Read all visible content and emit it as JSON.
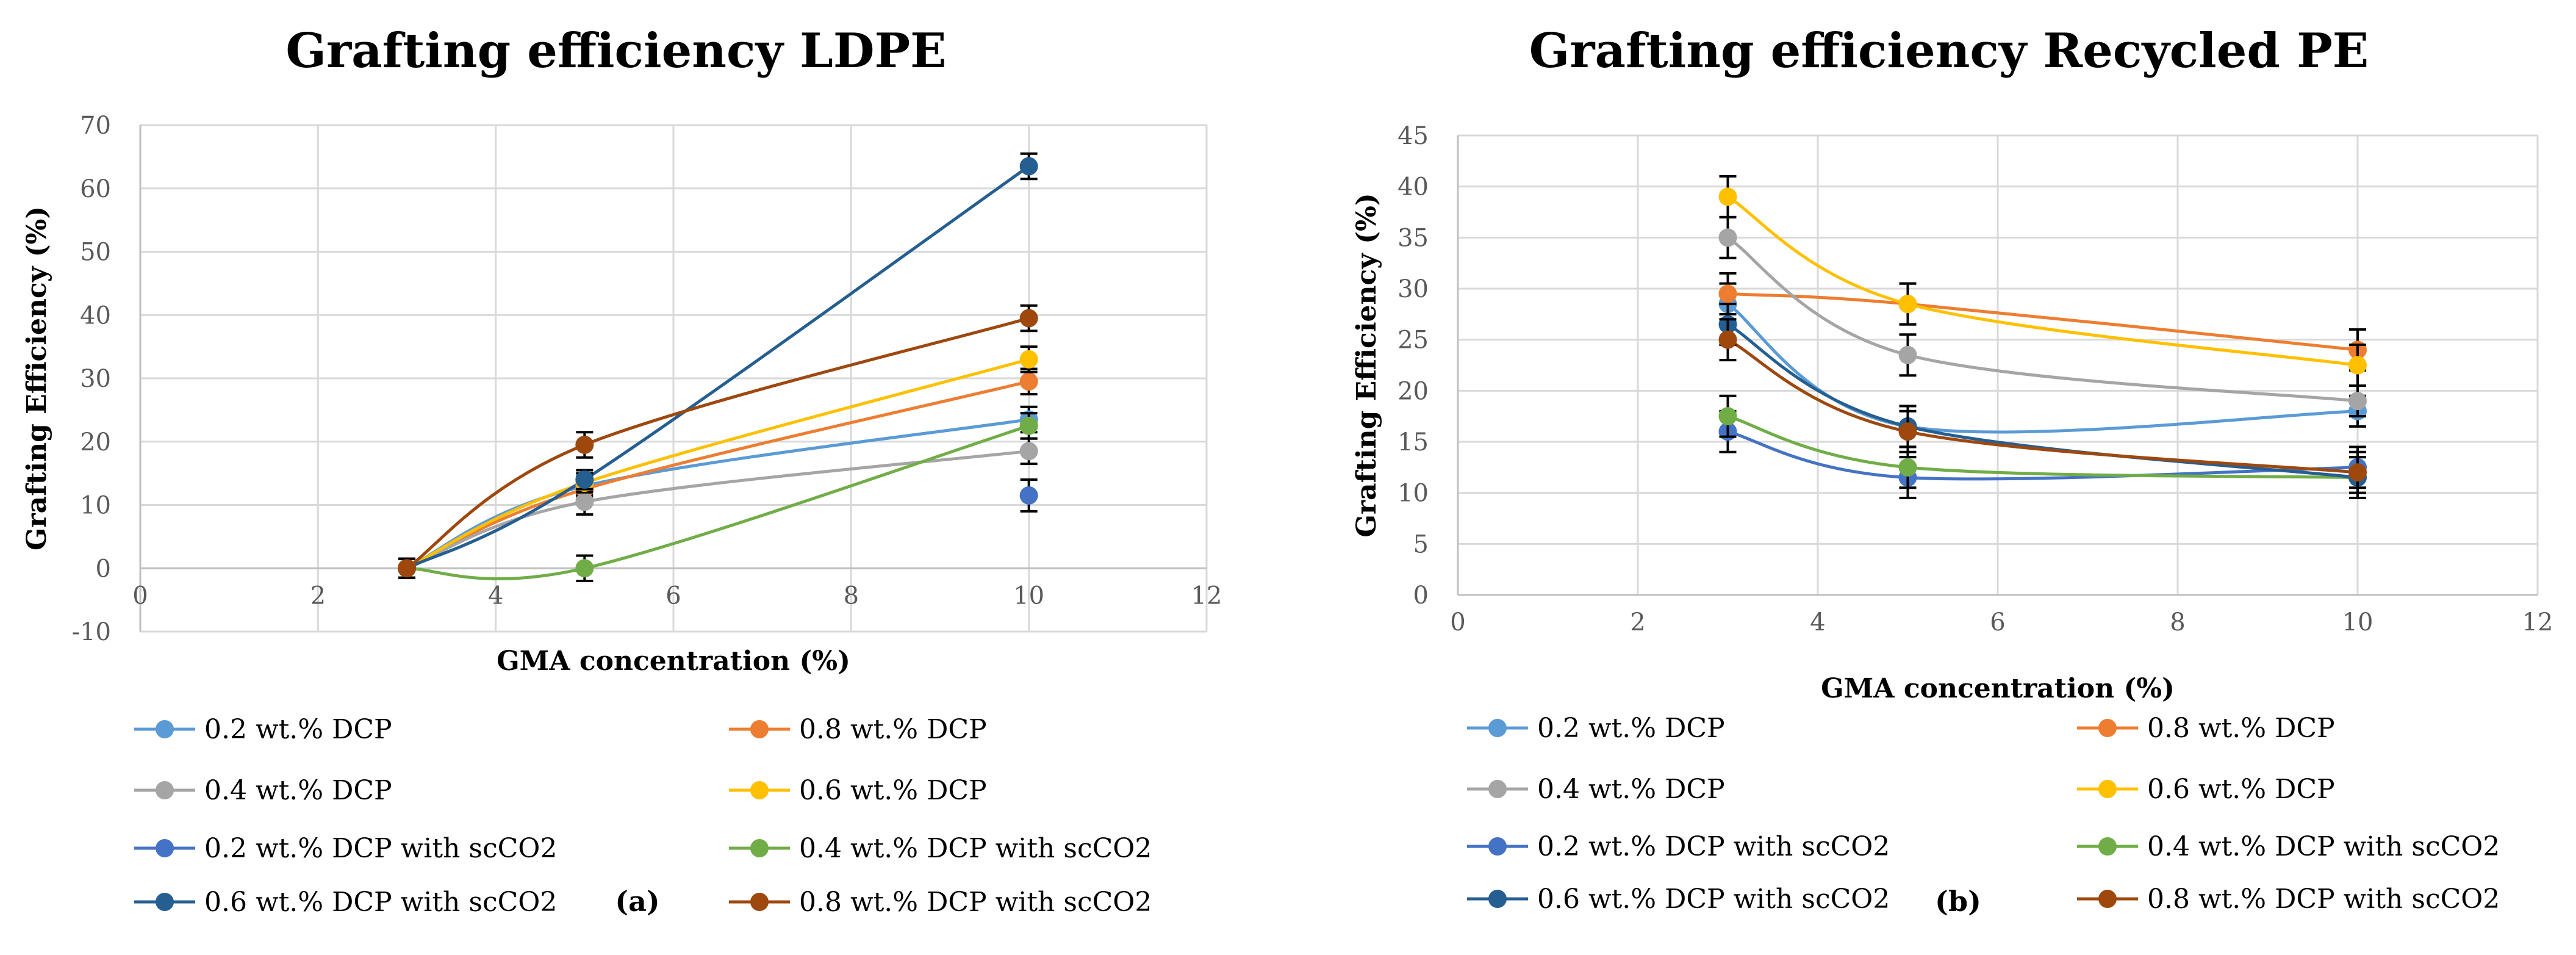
{
  "chart_data": [
    {
      "type": "line",
      "panel_label": "(a)",
      "title": "Grafting efficiency LDPE",
      "xlabel": "GMA concentration (%)",
      "ylabel": "Grafting Efficiency (%)",
      "xlim": [
        0,
        12
      ],
      "ylim": [
        -10,
        70
      ],
      "xticks": [
        0,
        2,
        4,
        6,
        8,
        10,
        12
      ],
      "yticks": [
        -10,
        0,
        10,
        20,
        30,
        40,
        50,
        60,
        70
      ],
      "grid": true,
      "legend_position": "bottom",
      "series": [
        {
          "name": "0.2 wt.% DCP",
          "color": "#5B9BD5",
          "x": [
            3,
            5,
            10
          ],
          "y": [
            0,
            13,
            23.5
          ],
          "err": [
            1.5,
            1.5,
            2
          ]
        },
        {
          "name": "0.8 wt.% DCP",
          "color": "#ED7D31",
          "x": [
            3,
            5,
            10
          ],
          "y": [
            0,
            12.5,
            29.5
          ],
          "err": [
            1.5,
            1.5,
            2
          ]
        },
        {
          "name": "0.4 wt.% DCP",
          "color": "#A5A5A5",
          "x": [
            3,
            5,
            10
          ],
          "y": [
            0,
            10.5,
            18.5
          ],
          "err": [
            1.5,
            2,
            2
          ]
        },
        {
          "name": "0.6 wt.% DCP",
          "color": "#FFC000",
          "x": [
            3,
            5,
            10
          ],
          "y": [
            0,
            13.5,
            33
          ],
          "err": [
            1.5,
            1.5,
            2
          ]
        },
        {
          "name": "0.2 wt.% DCP with scCO2",
          "color": "#4472C4",
          "x": [
            10
          ],
          "y": [
            11.5
          ],
          "err": [
            2.5
          ]
        },
        {
          "name": "0.4 wt.% DCP with scCO2",
          "color": "#70AD47",
          "x": [
            3,
            5,
            10
          ],
          "y": [
            0,
            0,
            22.5
          ],
          "err": [
            1.5,
            2,
            2
          ]
        },
        {
          "name": "0.6 wt.% DCP with scCO2",
          "color": "#255E91",
          "x": [
            3,
            5,
            10
          ],
          "y": [
            0,
            14,
            63.5
          ],
          "err": [
            1.5,
            1.5,
            2
          ]
        },
        {
          "name": "0.8 wt.% DCP with scCO2",
          "color": "#9E480E",
          "x": [
            3,
            5,
            10
          ],
          "y": [
            0,
            19.5,
            39.5
          ],
          "err": [
            1.5,
            2,
            2
          ]
        }
      ]
    },
    {
      "type": "line",
      "panel_label": "(b)",
      "title": "Grafting efficiency Recycled PE",
      "xlabel": "GMA concentration (%)",
      "ylabel": "Grafting Efficiency (%)",
      "xlim": [
        0,
        12
      ],
      "ylim": [
        0,
        45
      ],
      "xticks": [
        0,
        2,
        4,
        6,
        8,
        10,
        12
      ],
      "yticks": [
        0,
        5,
        10,
        15,
        20,
        25,
        30,
        35,
        40,
        45
      ],
      "grid": true,
      "legend_position": "bottom",
      "series": [
        {
          "name": "0.2 wt.% DCP",
          "color": "#5B9BD5",
          "x": [
            3,
            5,
            10
          ],
          "y": [
            28.5,
            16.5,
            18
          ],
          "err": [
            2,
            2,
            1.5
          ]
        },
        {
          "name": "0.8 wt.% DCP",
          "color": "#ED7D31",
          "x": [
            3,
            5,
            10
          ],
          "y": [
            29.5,
            28.5,
            24
          ],
          "err": [
            2,
            2,
            2
          ]
        },
        {
          "name": "0.4 wt.% DCP",
          "color": "#A5A5A5",
          "x": [
            3,
            5,
            10
          ],
          "y": [
            35,
            23.5,
            19
          ],
          "err": [
            2,
            2,
            1.5
          ]
        },
        {
          "name": "0.6 wt.% DCP",
          "color": "#FFC000",
          "x": [
            3,
            5,
            10
          ],
          "y": [
            39,
            28.5,
            22.5
          ],
          "err": [
            2,
            2,
            2
          ]
        },
        {
          "name": "0.2 wt.% DCP with scCO2",
          "color": "#4472C4",
          "x": [
            3,
            5,
            10
          ],
          "y": [
            16,
            11.5,
            12.5
          ],
          "err": [
            2,
            2,
            2
          ]
        },
        {
          "name": "0.4 wt.% DCP with scCO2",
          "color": "#70AD47",
          "x": [
            3,
            5,
            10
          ],
          "y": [
            17.5,
            12.5,
            11.5
          ],
          "err": [
            2,
            2,
            2
          ]
        },
        {
          "name": "0.6 wt.% DCP with scCO2",
          "color": "#255E91",
          "x": [
            3,
            5,
            10
          ],
          "y": [
            26.5,
            16.5,
            11.5
          ],
          "err": [
            2,
            2,
            2
          ]
        },
        {
          "name": "0.8 wt.% DCP with scCO2",
          "color": "#9E480E",
          "x": [
            3,
            5,
            10
          ],
          "y": [
            25,
            16,
            12
          ],
          "err": [
            2,
            2,
            2
          ]
        }
      ]
    }
  ]
}
